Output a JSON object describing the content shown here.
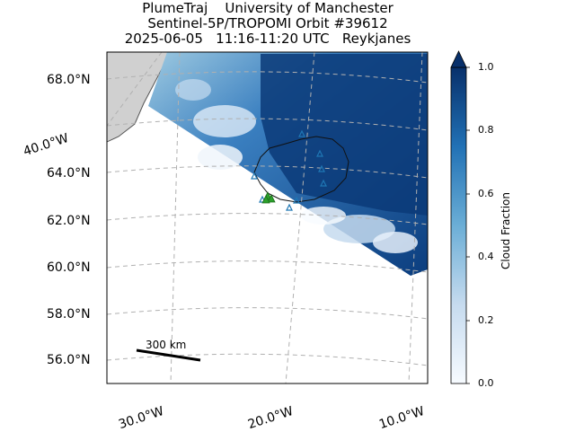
{
  "title": {
    "line1": "PlumeTraj    University of Manchester",
    "line2": "Sentinel-5P/TROPOMI Orbit #39612",
    "line3": "2025-06-05   11:16-11:20 UTC   Reykjanes"
  },
  "map": {
    "lat_labels": [
      "68.0°N",
      "64.0°N",
      "62.0°N",
      "60.0°N",
      "58.0°N",
      "56.0°N"
    ],
    "lon_labels": [
      "40.0°W",
      "30.0°W",
      "20.0°W",
      "10.0°W"
    ],
    "scale_bar_label": "300 km",
    "land_color": "#d0d0d0",
    "coastline_color": "#555555",
    "volcano_marker_color": "#2ca02c",
    "station_marker_color": "#1f77b4"
  },
  "colorbar": {
    "title": "Cloud Fraction",
    "ticks": [
      "1.0",
      "0.8",
      "0.6",
      "0.4",
      "0.2",
      "0.0"
    ],
    "colormap": "Blues",
    "range": [
      0.0,
      1.0
    ],
    "extend": "max"
  }
}
